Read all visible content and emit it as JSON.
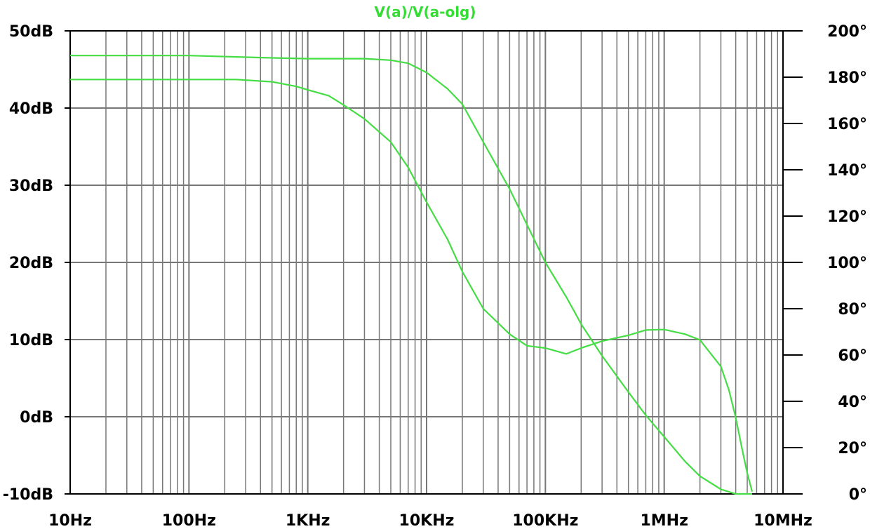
{
  "chart_data": {
    "type": "line",
    "title": "V(a)/V(a-olg)",
    "xlabel": "",
    "ylabel": "",
    "y2label": "",
    "x_scale": "log",
    "xlim": [
      10,
      10000000
    ],
    "ylim": [
      -10,
      50
    ],
    "y2lim": [
      0,
      200
    ],
    "grid": true,
    "line_color": "#44dd44",
    "x_ticks": [
      {
        "value": 10,
        "label": "10Hz"
      },
      {
        "value": 100,
        "label": "100Hz"
      },
      {
        "value": 1000,
        "label": "1KHz"
      },
      {
        "value": 10000,
        "label": "10KHz"
      },
      {
        "value": 100000,
        "label": "100KHz"
      },
      {
        "value": 1000000,
        "label": "1MHz"
      },
      {
        "value": 10000000,
        "label": "10MHz"
      }
    ],
    "y_ticks": [
      {
        "value": -10,
        "label": "-10dB"
      },
      {
        "value": 0,
        "label": "0dB"
      },
      {
        "value": 10,
        "label": "10dB"
      },
      {
        "value": 20,
        "label": "20dB"
      },
      {
        "value": 30,
        "label": "30dB"
      },
      {
        "value": 40,
        "label": "40dB"
      },
      {
        "value": 50,
        "label": "50dB"
      }
    ],
    "y2_ticks": [
      {
        "value": 0,
        "label": "0°"
      },
      {
        "value": 20,
        "label": "20°"
      },
      {
        "value": 40,
        "label": "40°"
      },
      {
        "value": 60,
        "label": "60°"
      },
      {
        "value": 80,
        "label": "80°"
      },
      {
        "value": 100,
        "label": "100°"
      },
      {
        "value": 120,
        "label": "120°"
      },
      {
        "value": 140,
        "label": "140°"
      },
      {
        "value": 160,
        "label": "160°"
      },
      {
        "value": 180,
        "label": "180°"
      },
      {
        "value": 200,
        "label": "200°"
      }
    ],
    "series": [
      {
        "axis": "left",
        "x": [
          10,
          100,
          500,
          1000,
          2000,
          3000,
          5000,
          7000,
          10000,
          15000,
          20000,
          30000,
          50000,
          100000,
          150000,
          180000,
          200000,
          300000,
          500000,
          700000,
          1000000,
          1500000,
          2000000,
          3000000,
          4000000,
          4600000,
          5000000,
          5500000
        ],
        "y": [
          46.8,
          46.8,
          46.5,
          46.4,
          46.4,
          46.4,
          46.2,
          45.8,
          44.6,
          42.5,
          40.5,
          35.6,
          29.5,
          20.0,
          15.5,
          13.3,
          12.0,
          7.9,
          3.2,
          0.2,
          -2.6,
          -5.8,
          -7.7,
          -9.4,
          -10.0,
          -10.0,
          -10.0,
          -10.0
        ]
      },
      {
        "axis": "right",
        "x": [
          10,
          100,
          250,
          500,
          800,
          1000,
          1500,
          2000,
          3000,
          5000,
          7000,
          10000,
          15000,
          20000,
          30000,
          50000,
          70000,
          100000,
          150000,
          200000,
          300000,
          500000,
          700000,
          1000000,
          1500000,
          2000000,
          3000000,
          3500000,
          4000000,
          4500000,
          5000000,
          5500000
        ],
        "y": [
          179,
          179,
          179,
          178,
          176,
          174.5,
          172,
          168,
          162,
          152,
          141,
          126,
          110,
          96,
          80,
          69,
          64,
          63,
          60.5,
          63,
          66,
          68.5,
          70.8,
          71,
          69,
          66.5,
          55,
          45,
          33,
          20,
          9,
          1
        ]
      }
    ]
  }
}
